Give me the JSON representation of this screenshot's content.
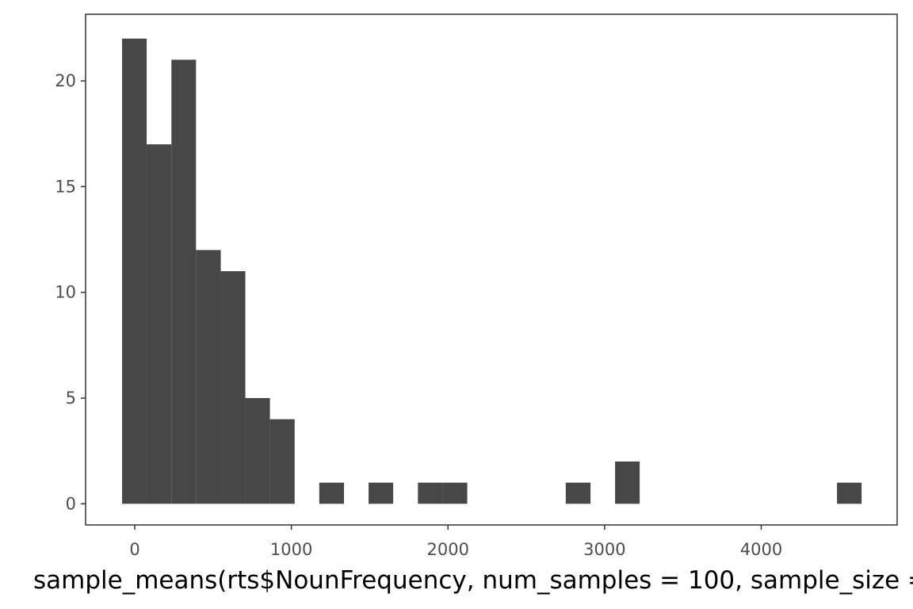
{
  "chart_data": {
    "type": "histogram",
    "x_label": "sample_means(rts$NounFrequency, num_samples = 100, sample_size =",
    "bins": [
      -81,
      76,
      234,
      391,
      549,
      706,
      863,
      1021,
      1178,
      1336,
      1493,
      1650,
      1808,
      1965,
      2123,
      2280,
      2437,
      2595,
      2752,
      2910,
      3067,
      3224,
      3382,
      3539,
      3697,
      3854,
      4011,
      4169,
      4326,
      4484,
      4641
    ],
    "values": [
      22,
      17,
      21,
      12,
      11,
      5,
      4,
      0,
      1,
      0,
      1,
      0,
      1,
      1,
      0,
      0,
      0,
      0,
      1,
      0,
      2,
      0,
      0,
      0,
      0,
      0,
      0,
      0,
      0,
      1
    ],
    "color": "#474747",
    "xlim": [
      -314,
      4868
    ],
    "xticks": [
      0,
      1000,
      2000,
      3000,
      4000
    ],
    "ylim": [
      -1.0,
      23.15
    ],
    "yticks": [
      0,
      5,
      10,
      15,
      20
    ],
    "grid": false
  }
}
